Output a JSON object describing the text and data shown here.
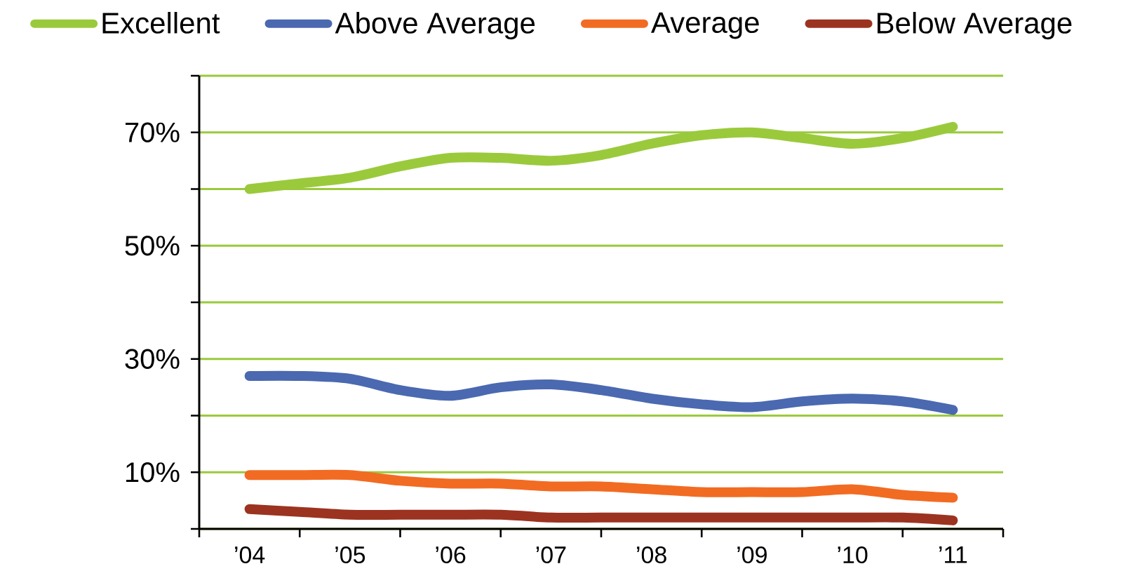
{
  "chart_data": {
    "type": "line",
    "x": [
      2004,
      2004.5,
      2005,
      2005.5,
      2006,
      2006.5,
      2007,
      2007.5,
      2008,
      2008.5,
      2009,
      2009.5,
      2010,
      2010.5,
      2011
    ],
    "series": [
      {
        "name": "Excellent",
        "color": "#9aca3c",
        "values": [
          60,
          61,
          62,
          64,
          65.5,
          65.5,
          65,
          66,
          68,
          69.5,
          70,
          69,
          68,
          69,
          71
        ]
      },
      {
        "name": "Above Average",
        "color": "#4a69b0",
        "values": [
          27,
          27,
          26.5,
          24.5,
          23.5,
          25,
          25.5,
          24.5,
          23,
          22,
          21.5,
          22.5,
          23,
          22.5,
          21
        ]
      },
      {
        "name": "Average",
        "color": "#f26b22",
        "values": [
          9.5,
          9.5,
          9.5,
          8.5,
          8,
          8,
          7.5,
          7.5,
          7,
          6.5,
          6.5,
          6.5,
          7,
          6,
          5.5
        ]
      },
      {
        "name": "Below Average",
        "color": "#9b3320",
        "values": [
          3.5,
          3,
          2.5,
          2.5,
          2.5,
          2.5,
          2,
          2,
          2,
          2,
          2,
          2,
          2,
          2,
          1.5
        ]
      }
    ],
    "xlim": [
      2003.5,
      2011.5
    ],
    "xticks": [
      {
        "value": 2003.5,
        "label": null
      },
      {
        "value": 2004,
        "label": "’04"
      },
      {
        "value": 2004.5,
        "label": null
      },
      {
        "value": 2005,
        "label": "’05"
      },
      {
        "value": 2005.5,
        "label": null
      },
      {
        "value": 2006,
        "label": "’06"
      },
      {
        "value": 2006.5,
        "label": null
      },
      {
        "value": 2007,
        "label": "’07"
      },
      {
        "value": 2007.5,
        "label": null
      },
      {
        "value": 2008,
        "label": "’08"
      },
      {
        "value": 2008.5,
        "label": null
      },
      {
        "value": 2009,
        "label": "’09"
      },
      {
        "value": 2009.5,
        "label": null
      },
      {
        "value": 2010,
        "label": "’10"
      },
      {
        "value": 2010.5,
        "label": null
      },
      {
        "value": 2011,
        "label": "’11"
      },
      {
        "value": 2011.5,
        "label": null
      }
    ],
    "ylim": [
      0,
      80
    ],
    "yticks": [
      {
        "value": 0,
        "label": null
      },
      {
        "value": 10,
        "label": "10%"
      },
      {
        "value": 20,
        "label": null
      },
      {
        "value": 30,
        "label": "30%"
      },
      {
        "value": 40,
        "label": null
      },
      {
        "value": 50,
        "label": "50%"
      },
      {
        "value": 60,
        "label": null
      },
      {
        "value": 70,
        "label": "70%"
      },
      {
        "value": 80,
        "label": null
      }
    ],
    "grid": "y",
    "legend": "top"
  }
}
